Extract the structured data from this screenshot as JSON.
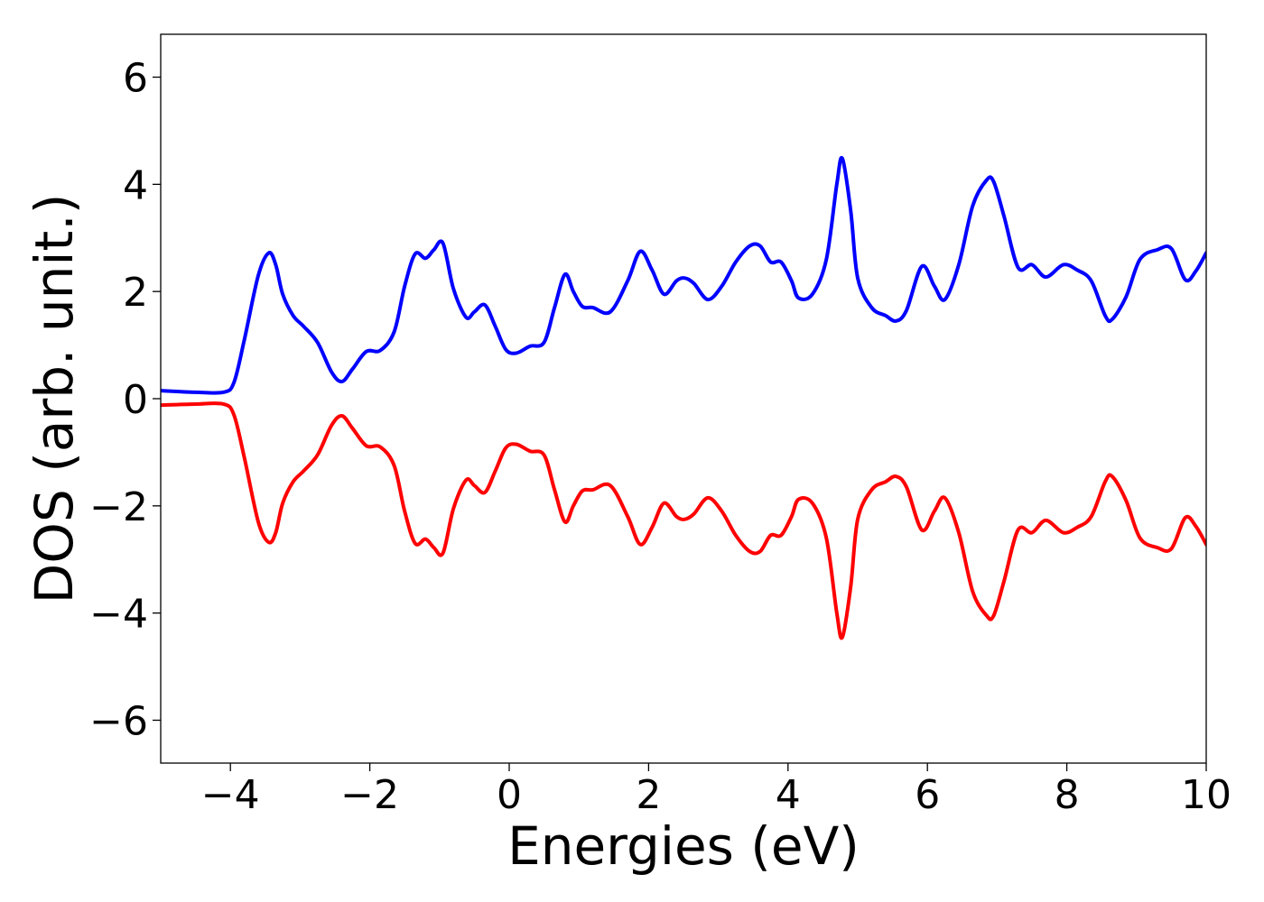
{
  "chart_data": {
    "type": "line",
    "title": "",
    "xlabel": "Energies (eV)",
    "ylabel": "DOS (arb. unit.)",
    "xlim": [
      -5,
      10
    ],
    "ylim": [
      -6.8,
      6.8
    ],
    "xticks": [
      -4,
      -2,
      0,
      2,
      4,
      6,
      8,
      10
    ],
    "yticks": [
      -6,
      -4,
      -2,
      0,
      2,
      4,
      6
    ],
    "xtick_labels": [
      "−4",
      "−2",
      "0",
      "2",
      "4",
      "6",
      "8",
      "10"
    ],
    "ytick_labels": [
      "−6",
      "−4",
      "−2",
      "0",
      "2",
      "4",
      "6"
    ],
    "grid": false,
    "legend": "none",
    "series": [
      {
        "color": "#0000ff",
        "x": [
          -5.0,
          -4.5,
          -4.1,
          -3.95,
          -3.8,
          -3.6,
          -3.45,
          -3.35,
          -3.25,
          -3.1,
          -2.95,
          -2.75,
          -2.55,
          -2.4,
          -2.25,
          -2.05,
          -1.85,
          -1.65,
          -1.5,
          -1.35,
          -1.2,
          -1.08,
          -0.95,
          -0.8,
          -0.62,
          -0.5,
          -0.35,
          -0.2,
          -0.05,
          0.1,
          0.3,
          0.5,
          0.65,
          0.8,
          0.92,
          1.05,
          1.2,
          1.45,
          1.7,
          1.88,
          2.05,
          2.22,
          2.4,
          2.52,
          2.65,
          2.85,
          3.05,
          3.25,
          3.45,
          3.6,
          3.75,
          3.9,
          4.05,
          4.15,
          4.35,
          4.55,
          4.7,
          4.78,
          4.9,
          5.0,
          5.2,
          5.4,
          5.55,
          5.7,
          5.92,
          6.1,
          6.25,
          6.45,
          6.65,
          6.85,
          6.95,
          7.1,
          7.3,
          7.5,
          7.7,
          7.95,
          8.15,
          8.35,
          8.55,
          8.65,
          8.85,
          9.05,
          9.3,
          9.5,
          9.7,
          9.85,
          10.0
        ],
        "y": [
          0.15,
          0.12,
          0.12,
          0.3,
          1.1,
          2.3,
          2.72,
          2.5,
          1.95,
          1.55,
          1.35,
          1.05,
          0.5,
          0.32,
          0.55,
          0.88,
          0.9,
          1.25,
          2.1,
          2.7,
          2.62,
          2.78,
          2.9,
          2.05,
          1.52,
          1.62,
          1.75,
          1.35,
          0.92,
          0.85,
          0.98,
          1.05,
          1.7,
          2.32,
          2.0,
          1.72,
          1.7,
          1.62,
          2.2,
          2.75,
          2.4,
          1.95,
          2.2,
          2.25,
          2.15,
          1.85,
          2.1,
          2.55,
          2.85,
          2.85,
          2.55,
          2.55,
          2.2,
          1.88,
          1.95,
          2.6,
          4.0,
          4.48,
          3.5,
          2.25,
          1.7,
          1.55,
          1.45,
          1.65,
          2.47,
          2.1,
          1.85,
          2.5,
          3.6,
          4.08,
          4.05,
          3.4,
          2.45,
          2.5,
          2.27,
          2.5,
          2.4,
          2.2,
          1.55,
          1.48,
          1.9,
          2.6,
          2.78,
          2.8,
          2.22,
          2.38,
          2.72
        ]
      },
      {
        "color": "#ff0000",
        "x": [
          -5.0,
          -4.5,
          -4.1,
          -3.95,
          -3.8,
          -3.6,
          -3.45,
          -3.35,
          -3.25,
          -3.1,
          -2.95,
          -2.75,
          -2.55,
          -2.4,
          -2.25,
          -2.05,
          -1.85,
          -1.65,
          -1.5,
          -1.35,
          -1.2,
          -1.08,
          -0.95,
          -0.8,
          -0.62,
          -0.5,
          -0.35,
          -0.2,
          -0.05,
          0.1,
          0.3,
          0.5,
          0.65,
          0.8,
          0.92,
          1.05,
          1.2,
          1.45,
          1.7,
          1.88,
          2.05,
          2.22,
          2.4,
          2.52,
          2.65,
          2.85,
          3.05,
          3.25,
          3.45,
          3.6,
          3.75,
          3.9,
          4.05,
          4.15,
          4.35,
          4.55,
          4.7,
          4.78,
          4.9,
          5.0,
          5.2,
          5.4,
          5.55,
          5.7,
          5.92,
          6.1,
          6.25,
          6.45,
          6.65,
          6.85,
          6.95,
          7.1,
          7.3,
          7.5,
          7.7,
          7.95,
          8.15,
          8.35,
          8.55,
          8.65,
          8.85,
          9.05,
          9.3,
          9.5,
          9.7,
          9.85,
          10.0
        ],
        "y": [
          -0.12,
          -0.1,
          -0.1,
          -0.3,
          -1.1,
          -2.3,
          -2.68,
          -2.5,
          -1.95,
          -1.55,
          -1.35,
          -1.05,
          -0.5,
          -0.32,
          -0.55,
          -0.88,
          -0.9,
          -1.25,
          -2.1,
          -2.7,
          -2.62,
          -2.78,
          -2.88,
          -2.05,
          -1.52,
          -1.62,
          -1.75,
          -1.35,
          -0.92,
          -0.85,
          -0.98,
          -1.05,
          -1.7,
          -2.3,
          -2.0,
          -1.72,
          -1.7,
          -1.62,
          -2.2,
          -2.72,
          -2.4,
          -1.95,
          -2.2,
          -2.25,
          -2.15,
          -1.85,
          -2.1,
          -2.55,
          -2.85,
          -2.85,
          -2.55,
          -2.55,
          -2.2,
          -1.88,
          -1.95,
          -2.6,
          -4.0,
          -4.45,
          -3.5,
          -2.25,
          -1.7,
          -1.55,
          -1.45,
          -1.65,
          -2.45,
          -2.1,
          -1.85,
          -2.5,
          -3.6,
          -4.05,
          -4.05,
          -3.4,
          -2.45,
          -2.5,
          -2.27,
          -2.5,
          -2.4,
          -2.2,
          -1.55,
          -1.45,
          -1.9,
          -2.6,
          -2.78,
          -2.8,
          -2.22,
          -2.38,
          -2.72
        ]
      }
    ]
  }
}
